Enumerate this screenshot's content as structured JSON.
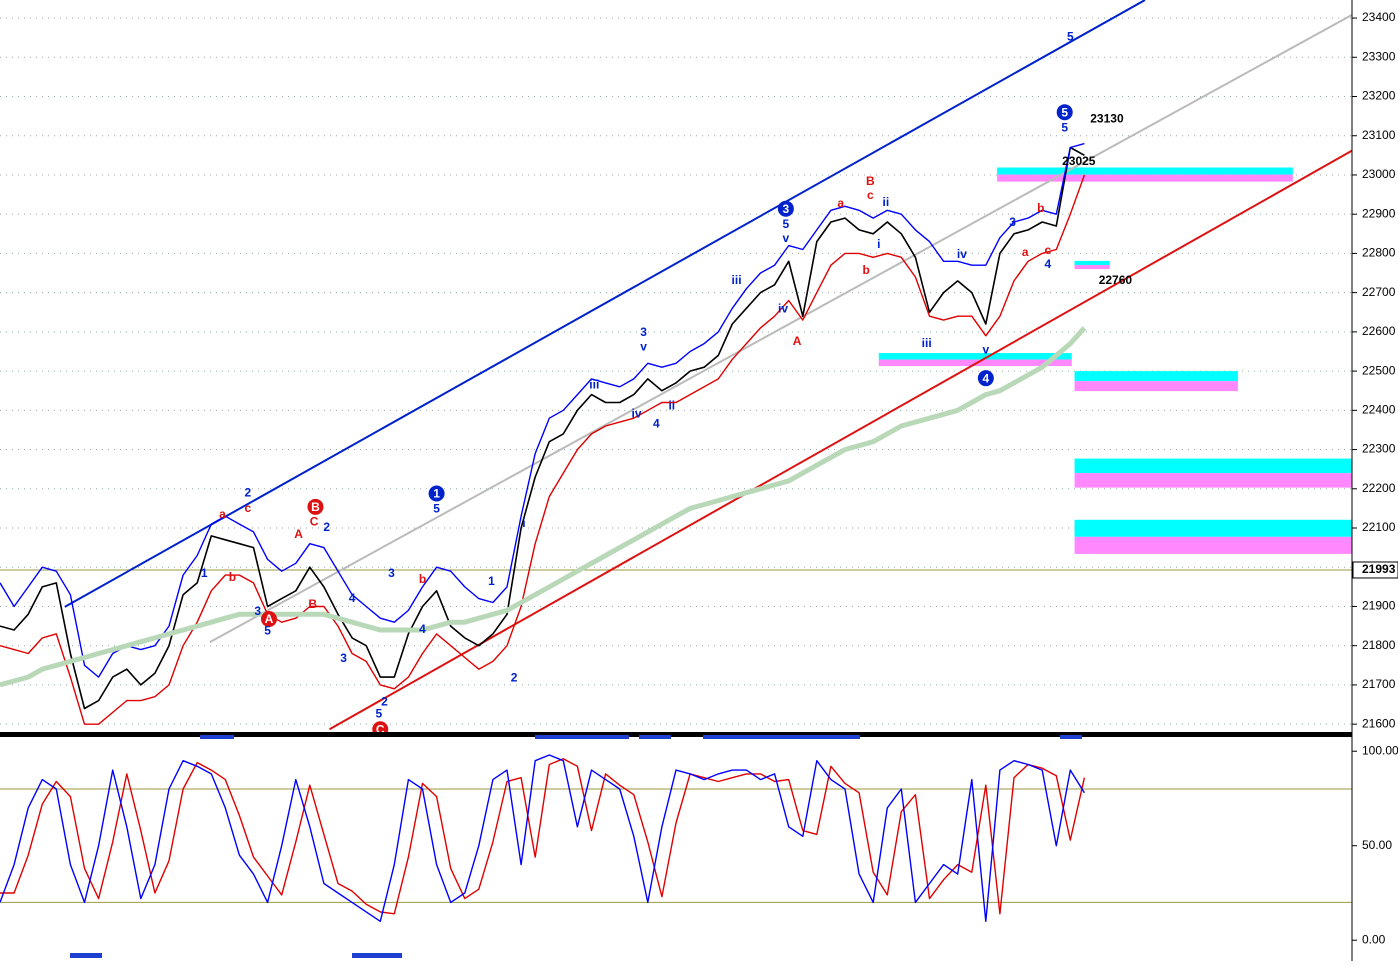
{
  "chart_data": [
    {
      "type": "line",
      "xlim": [
        0,
        96
      ],
      "ylim": [
        21580,
        23446
      ],
      "yticks": [
        21600,
        21700,
        21800,
        21900,
        22000,
        22100,
        22200,
        22300,
        22400,
        22500,
        22600,
        22700,
        22800,
        22900,
        23000,
        23100,
        23200,
        23300,
        23400
      ],
      "grid": true,
      "last_price": 21993,
      "series": [
        {
          "color": "#000000",
          "values": [
            21850,
            21840,
            21880,
            21950,
            21960,
            21780,
            21640,
            21660,
            21720,
            21740,
            21700,
            21730,
            21800,
            21930,
            21960,
            22080,
            22070,
            22060,
            22050,
            21900,
            21920,
            21940,
            22000,
            21950,
            21880,
            21820,
            21800,
            21720,
            21720,
            21830,
            21900,
            21940,
            21850,
            21820,
            21800,
            21830,
            21880,
            22100,
            22230,
            22320,
            22340,
            22400,
            22440,
            22420,
            22420,
            22440,
            22480,
            22450,
            22470,
            22500,
            22510,
            22540,
            22620,
            22660,
            22700,
            22720,
            22780,
            22640,
            22830,
            22880,
            22890,
            22860,
            22850,
            22880,
            22850,
            22790,
            22650,
            22700,
            22730,
            22700,
            22620,
            22800,
            22850,
            22860,
            22880,
            22870,
            23070,
            23050
          ]
        },
        {
          "color": "#0000ff",
          "values": [
            21960,
            21900,
            21950,
            22000,
            21990,
            21930,
            21750,
            21720,
            21780,
            21800,
            21790,
            21800,
            21850,
            21980,
            22030,
            22110,
            22130,
            22110,
            22090,
            22020,
            21990,
            22010,
            22060,
            22050,
            21990,
            21930,
            21900,
            21870,
            21860,
            21890,
            21950,
            22000,
            21990,
            21950,
            21920,
            21910,
            21950,
            22130,
            22290,
            22380,
            22400,
            22440,
            22480,
            22470,
            22460,
            22480,
            22520,
            22510,
            22520,
            22550,
            22570,
            22600,
            22660,
            22710,
            22750,
            22770,
            22820,
            22810,
            22860,
            22910,
            22920,
            22910,
            22890,
            22910,
            22900,
            22860,
            22830,
            22780,
            22780,
            22770,
            22770,
            22840,
            22880,
            22890,
            22910,
            22900,
            23070,
            23080
          ]
        },
        {
          "color": "#e00000",
          "values": [
            21800,
            21790,
            21780,
            21820,
            21830,
            21720,
            21600,
            21600,
            21630,
            21660,
            21660,
            21670,
            21700,
            21800,
            21860,
            21940,
            21980,
            21980,
            21960,
            21880,
            21860,
            21870,
            21900,
            21900,
            21850,
            21780,
            21760,
            21700,
            21690,
            21720,
            21780,
            21830,
            21800,
            21770,
            21740,
            21760,
            21800,
            21900,
            22060,
            22180,
            22240,
            22300,
            22340,
            22360,
            22370,
            22380,
            22400,
            22420,
            22420,
            22440,
            22460,
            22480,
            22530,
            22570,
            22610,
            22640,
            22680,
            22630,
            22700,
            22770,
            22800,
            22800,
            22790,
            22800,
            22790,
            22740,
            22640,
            22630,
            22640,
            22640,
            22590,
            22640,
            22730,
            22780,
            22800,
            22810,
            22900,
            23000
          ]
        },
        {
          "color": "#b8d8b8",
          "values": [
            21700,
            21710,
            21720,
            21740,
            21750,
            21760,
            21770,
            21780,
            21790,
            21800,
            21810,
            21820,
            21830,
            21840,
            21850,
            21860,
            21870,
            21880,
            21880,
            21880,
            21880,
            21880,
            21880,
            21880,
            21870,
            21860,
            21850,
            21840,
            21840,
            21840,
            21840,
            21850,
            21860,
            21860,
            21870,
            21880,
            21890,
            21910,
            21930,
            21950,
            21970,
            21990,
            22010,
            22030,
            22050,
            22070,
            22090,
            22110,
            22130,
            22150,
            22160,
            22170,
            22180,
            22190,
            22200,
            22210,
            22220,
            22240,
            22260,
            22280,
            22300,
            22310,
            22320,
            22340,
            22360,
            22370,
            22380,
            22390,
            22400,
            22420,
            22440,
            22450,
            22470,
            22490,
            22510,
            22540,
            22570,
            22610
          ]
        }
      ],
      "trendlines": [
        {
          "color": "#0022cc",
          "points": [
            [
              4.6,
              21899
            ],
            [
              81.3,
              23446
            ]
          ]
        },
        {
          "color": "#bbbbbb",
          "points": [
            [
              14.9,
              21809
            ],
            [
              96,
              23408
            ]
          ]
        },
        {
          "color": "#dd1111",
          "points": [
            [
              23.4,
              21587
            ],
            [
              96,
              23062
            ]
          ]
        }
      ],
      "zones": [
        {
          "x": [
            70.8,
            91.8
          ],
          "y": [
            22983,
            23019
          ]
        },
        {
          "x": [
            62.4,
            76.1
          ],
          "y": [
            22513,
            22546
          ]
        },
        {
          "x": [
            76.3,
            78.8
          ],
          "y": [
            22760,
            22781
          ]
        },
        {
          "x": [
            76.3,
            87.9
          ],
          "y": [
            22449,
            22500
          ]
        },
        {
          "x": [
            76.3,
            96
          ],
          "y": [
            22203,
            22277
          ]
        },
        {
          "x": [
            76.3,
            96
          ],
          "y": [
            22034,
            22121
          ]
        }
      ],
      "annotations": [
        {
          "text": "5",
          "x": 76,
          "y": 23351,
          "color": "#0022cc"
        },
        {
          "text": "5",
          "x": 75.6,
          "y": 23160,
          "color": "#0022cc",
          "circled": true
        },
        {
          "text": "3",
          "x": 55.8,
          "y": 22914,
          "color": "#0022cc",
          "circled": true
        },
        {
          "text": "4",
          "x": 70.0,
          "y": 22482,
          "color": "#0022cc",
          "circled": true
        },
        {
          "text": "1",
          "x": 31.0,
          "y": 22188,
          "color": "#0022cc",
          "circled": true
        },
        {
          "text": "B",
          "x": 22.4,
          "y": 22154,
          "color": "#dd1111",
          "circled": true
        },
        {
          "text": "A",
          "x": 19.1,
          "y": 21868,
          "color": "#dd1111",
          "circled": true
        },
        {
          "text": "C",
          "x": 27.0,
          "y": 21587,
          "color": "#dd1111",
          "circled": true
        },
        {
          "text": "5",
          "x": 75.6,
          "y": 23119,
          "color": "#0022cc"
        },
        {
          "text": "5",
          "x": 55.8,
          "y": 22873,
          "color": "#0022cc"
        },
        {
          "text": "v",
          "x": 55.8,
          "y": 22837,
          "color": "#0022cc"
        },
        {
          "text": "3",
          "x": 45.7,
          "y": 22597,
          "color": "#0022cc"
        },
        {
          "text": "v",
          "x": 45.7,
          "y": 22561,
          "color": "#0022cc"
        },
        {
          "text": "iii",
          "x": 42.2,
          "y": 22464,
          "color": "#0022cc"
        },
        {
          "text": "iii",
          "x": 52.3,
          "y": 22730,
          "color": "#0022cc"
        },
        {
          "text": "iv",
          "x": 55.6,
          "y": 22658,
          "color": "#0022cc"
        },
        {
          "text": "A",
          "x": 56.6,
          "y": 22574,
          "color": "#dd1111"
        },
        {
          "text": "a",
          "x": 59.7,
          "y": 22927,
          "color": "#dd1111"
        },
        {
          "text": "B",
          "x": 61.8,
          "y": 22983,
          "color": "#dd1111"
        },
        {
          "text": "c",
          "x": 61.8,
          "y": 22947,
          "color": "#dd1111"
        },
        {
          "text": "ii",
          "x": 62.9,
          "y": 22929,
          "color": "#0022cc"
        },
        {
          "text": "i",
          "x": 62.4,
          "y": 22822,
          "color": "#0022cc"
        },
        {
          "text": "b",
          "x": 61.5,
          "y": 22755,
          "color": "#dd1111"
        },
        {
          "text": "iii",
          "x": 65.8,
          "y": 22569,
          "color": "#0022cc"
        },
        {
          "text": "iv",
          "x": 68.3,
          "y": 22796,
          "color": "#0022cc"
        },
        {
          "text": "v",
          "x": 70.0,
          "y": 22553,
          "color": "#0022cc"
        },
        {
          "text": "3",
          "x": 71.9,
          "y": 22878,
          "color": "#0022cc"
        },
        {
          "text": "b",
          "x": 73.9,
          "y": 22914,
          "color": "#dd1111"
        },
        {
          "text": "a",
          "x": 72.8,
          "y": 22802,
          "color": "#dd1111"
        },
        {
          "text": "c",
          "x": 74.4,
          "y": 22807,
          "color": "#dd1111"
        },
        {
          "text": "4",
          "x": 74.4,
          "y": 22771,
          "color": "#0022cc"
        },
        {
          "text": "iv",
          "x": 45.2,
          "y": 22390,
          "color": "#0022cc"
        },
        {
          "text": "4",
          "x": 46.6,
          "y": 22364,
          "color": "#0022cc"
        },
        {
          "text": "ii",
          "x": 47.7,
          "y": 22410,
          "color": "#0022cc"
        },
        {
          "text": "5",
          "x": 31.0,
          "y": 22147,
          "color": "#0022cc"
        },
        {
          "text": "1",
          "x": 34.9,
          "y": 21963,
          "color": "#0022cc"
        },
        {
          "text": "i",
          "x": 37.2,
          "y": 22111,
          "color": "#0022cc"
        },
        {
          "text": "2",
          "x": 36.5,
          "y": 21717,
          "color": "#0022cc"
        },
        {
          "text": "3",
          "x": 27.8,
          "y": 21983,
          "color": "#0022cc"
        },
        {
          "text": "4",
          "x": 30.0,
          "y": 21840,
          "color": "#0022cc"
        },
        {
          "text": "b",
          "x": 30.0,
          "y": 21968,
          "color": "#dd1111"
        },
        {
          "text": "3",
          "x": 24.4,
          "y": 21766,
          "color": "#0022cc"
        },
        {
          "text": "4",
          "x": 25.0,
          "y": 21919,
          "color": "#0022cc"
        },
        {
          "text": "5",
          "x": 26.9,
          "y": 21625,
          "color": "#0022cc"
        },
        {
          "text": "2",
          "x": 27.3,
          "y": 21656,
          "color": "#0022cc"
        },
        {
          "text": "C",
          "x": 22.3,
          "y": 22114,
          "color": "#dd1111"
        },
        {
          "text": "2",
          "x": 23.2,
          "y": 22101,
          "color": "#0022cc"
        },
        {
          "text": "A",
          "x": 21.2,
          "y": 22083,
          "color": "#dd1111"
        },
        {
          "text": "B",
          "x": 22.2,
          "y": 21904,
          "color": "#dd1111"
        },
        {
          "text": "a",
          "x": 15.8,
          "y": 22134,
          "color": "#dd1111"
        },
        {
          "text": "2",
          "x": 17.6,
          "y": 22188,
          "color": "#0022cc"
        },
        {
          "text": "c",
          "x": 17.6,
          "y": 22149,
          "color": "#dd1111"
        },
        {
          "text": "b",
          "x": 16.5,
          "y": 21973,
          "color": "#dd1111"
        },
        {
          "text": "1",
          "x": 14.5,
          "y": 21983,
          "color": "#0022cc"
        },
        {
          "text": "3",
          "x": 18.3,
          "y": 21886,
          "color": "#0022cc"
        },
        {
          "text": "5",
          "x": 19.0,
          "y": 21837,
          "color": "#0022cc"
        },
        {
          "text": "23130",
          "x": 78.6,
          "y": 23142,
          "color": "#000000"
        },
        {
          "text": "23025",
          "x": 76.6,
          "y": 23034,
          "color": "#000000"
        },
        {
          "text": "22760",
          "x": 79.2,
          "y": 22730,
          "color": "#000000"
        }
      ]
    },
    {
      "type": "line",
      "xlim": [
        0,
        96
      ],
      "ylim": [
        -11,
        107
      ],
      "yticks": [
        {
          "value": 0,
          "label": "0.00"
        },
        {
          "value": 50,
          "label": "50.00"
        },
        {
          "value": 100,
          "label": "100.00"
        }
      ],
      "levels": [
        20,
        80
      ],
      "series": [
        {
          "color": "#e00000",
          "values": [
            25,
            25,
            45,
            72,
            84,
            76,
            38,
            22,
            52,
            88,
            58,
            25,
            42,
            80,
            94,
            90,
            85,
            66,
            44,
            34,
            24,
            52,
            82,
            56,
            30,
            26,
            19,
            15,
            14,
            44,
            83,
            76,
            38,
            22,
            27,
            52,
            84,
            86,
            44,
            93,
            96,
            92,
            58,
            88,
            82,
            77,
            52,
            23,
            62,
            88,
            86,
            84,
            86,
            88,
            88,
            84,
            85,
            58,
            56,
            92,
            83,
            78,
            36,
            24,
            68,
            77,
            22,
            32,
            40,
            36,
            82,
            14,
            86,
            93,
            91,
            87,
            53,
            86
          ]
        },
        {
          "color": "#0000ff",
          "values": [
            20,
            40,
            70,
            85,
            80,
            40,
            20,
            50,
            90,
            60,
            22,
            40,
            80,
            95,
            92,
            88,
            70,
            45,
            35,
            20,
            50,
            85,
            60,
            30,
            25,
            20,
            15,
            10,
            40,
            85,
            80,
            40,
            20,
            25,
            50,
            85,
            90,
            40,
            95,
            98,
            95,
            60,
            90,
            85,
            80,
            55,
            20,
            60,
            90,
            88,
            85,
            88,
            90,
            90,
            85,
            88,
            60,
            55,
            95,
            85,
            80,
            35,
            20,
            70,
            80,
            20,
            30,
            40,
            35,
            85,
            10,
            90,
            95,
            93,
            90,
            50,
            90,
            78
          ]
        }
      ]
    }
  ]
}
